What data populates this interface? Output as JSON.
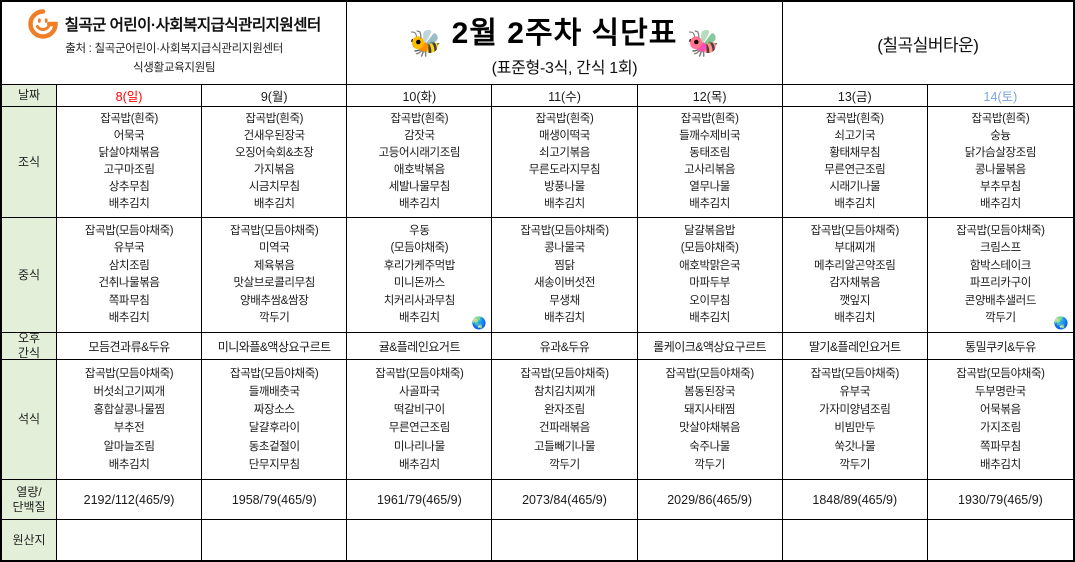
{
  "header": {
    "org_name": "칠곡군 어린이·사회복지급식관리지원센터",
    "source_line1": "출처 : 칠곡군어린이·사회복지급식관리지원센터",
    "source_line2": "식생활교육지원팀",
    "title": "2월 2주차 식단표",
    "subtitle": "(표준형-3식, 간식 1회)",
    "facility": "(칠곡실버타운)",
    "logo_icon": "smiley-center-logo",
    "bee_left_icon": "🐝",
    "bee_right_icon": "🐝",
    "sticker_icon": "🌏"
  },
  "colors": {
    "label_bg": "#e3efd9",
    "logo_orange": "#f07e26",
    "date_sunday_red": "#ff0000",
    "date_saturday_blue": "#7ca6dc",
    "border": "#000000"
  },
  "table": {
    "row_labels": {
      "date": "날짜",
      "breakfast": "조식",
      "lunch": "중식",
      "snack": "오후\n간식",
      "dinner": "석식",
      "nutrition": "열량/\n단백질",
      "origin": "원산지"
    },
    "days": [
      {
        "date": "8(일)",
        "date_color": "#ff0000",
        "breakfast": [
          "잡곡밥(흰죽)",
          "어묵국",
          "닭살야채볶음",
          "고구마조림",
          "상추무침",
          "배추김치"
        ],
        "lunch": [
          "잡곡밥(모듬야채죽)",
          "유부국",
          "삼치조림",
          "건취나물볶음",
          "쪽파무침",
          "배추김치"
        ],
        "lunch_sticker": false,
        "snack": "모듬견과류&두유",
        "dinner": [
          "잡곡밥(모듬야채죽)",
          "버섯쇠고기찌개",
          "홍합살콩나물찜",
          "부추전",
          "알마늘조림",
          "배추김치"
        ],
        "nutrition": "2192/112(465/9)",
        "origin": ""
      },
      {
        "date": "9(월)",
        "date_color": "#1a1a1a",
        "breakfast": [
          "잡곡밥(흰죽)",
          "건새우된장국",
          "오징어숙회&초장",
          "가지볶음",
          "시금치무침",
          "배추김치"
        ],
        "lunch": [
          "잡곡밥(모듬야채죽)",
          "미역국",
          "제육볶음",
          "맛살브로콜리무침",
          "양배추쌈&쌈장",
          "깍두기"
        ],
        "lunch_sticker": false,
        "snack": "미니와플&액상요구르트",
        "dinner": [
          "잡곡밥(모듬야채죽)",
          "들깨배춧국",
          "짜장소스",
          "달걀후라이",
          "동초겉절이",
          "단무지무침"
        ],
        "nutrition": "1958/79(465/9)",
        "origin": ""
      },
      {
        "date": "10(화)",
        "date_color": "#1a1a1a",
        "breakfast": [
          "잡곡밥(흰죽)",
          "감잣국",
          "고등어시래기조림",
          "애호박볶음",
          "세발나물무침",
          "배추김치"
        ],
        "lunch": [
          "우동",
          "(모듬야채죽)",
          "후리가케주먹밥",
          "미니돈까스",
          "치커리사과무침",
          "배추김치"
        ],
        "lunch_sticker": true,
        "snack": "귤&플레인요거트",
        "dinner": [
          "잡곡밥(모듬야채죽)",
          "사골파국",
          "떡갈비구이",
          "무른연근조림",
          "미나리나물",
          "배추김치"
        ],
        "nutrition": "1961/79(465/9)",
        "origin": ""
      },
      {
        "date": "11(수)",
        "date_color": "#1a1a1a",
        "breakfast": [
          "잡곡밥(흰죽)",
          "매생이떡국",
          "쇠고기볶음",
          "무른도라지무침",
          "방풍나물",
          "배추김치"
        ],
        "lunch": [
          "잡곡밥(모듬야채죽)",
          "콩나물국",
          "찜닭",
          "새송이버섯전",
          "무생채",
          "배추김치"
        ],
        "lunch_sticker": false,
        "snack": "유과&두유",
        "dinner": [
          "잡곡밥(모듬야채죽)",
          "참치김치찌개",
          "완자조림",
          "건파래볶음",
          "고들빼기나물",
          "깍두기"
        ],
        "nutrition": "2073/84(465/9)",
        "origin": ""
      },
      {
        "date": "12(목)",
        "date_color": "#1a1a1a",
        "breakfast": [
          "잡곡밥(흰죽)",
          "들깨수제비국",
          "동태조림",
          "고사리볶음",
          "열무나물",
          "배추김치"
        ],
        "lunch": [
          "달걀볶음밥",
          "(모듬야채죽)",
          "애호박맑은국",
          "마파두부",
          "오이무침",
          "배추김치"
        ],
        "lunch_sticker": false,
        "snack": "롤케이크&액상요구르트",
        "dinner": [
          "잡곡밥(모듬야채죽)",
          "봄동된장국",
          "돼지사태찜",
          "맛살야채볶음",
          "숙주나물",
          "깍두기"
        ],
        "nutrition": "2029/86(465/9)",
        "origin": ""
      },
      {
        "date": "13(금)",
        "date_color": "#1a1a1a",
        "breakfast": [
          "잡곡밥(흰죽)",
          "쇠고기국",
          "황태채무침",
          "무른연근조림",
          "시래기나물",
          "배추김치"
        ],
        "lunch": [
          "잡곡밥(모듬야채죽)",
          "부대찌개",
          "메추리알곤약조림",
          "감자채볶음",
          "깻잎지",
          "배추김치"
        ],
        "lunch_sticker": false,
        "snack": "딸기&플레인요거트",
        "dinner": [
          "잡곡밥(모듬야채죽)",
          "유부국",
          "가자미양념조림",
          "비빔만두",
          "쑥갓나물",
          "깍두기"
        ],
        "nutrition": "1848/89(465/9)",
        "origin": ""
      },
      {
        "date": "14(토)",
        "date_color": "#7ca6dc",
        "breakfast": [
          "잡곡밥(흰죽)",
          "숭늉",
          "닭가슴살장조림",
          "콩나물볶음",
          "부추무침",
          "배추김치"
        ],
        "lunch": [
          "잡곡밥(모듬야채죽)",
          "크림스프",
          "함박스테이크",
          "파프리카구이",
          "콘양배추샐러드",
          "깍두기"
        ],
        "lunch_sticker": true,
        "snack": "통밀쿠키&두유",
        "dinner": [
          "잡곡밥(모듬야채죽)",
          "두부명란국",
          "어묵볶음",
          "가지조림",
          "쪽파무침",
          "배추김치"
        ],
        "nutrition": "1930/79(465/9)",
        "origin": ""
      }
    ]
  }
}
